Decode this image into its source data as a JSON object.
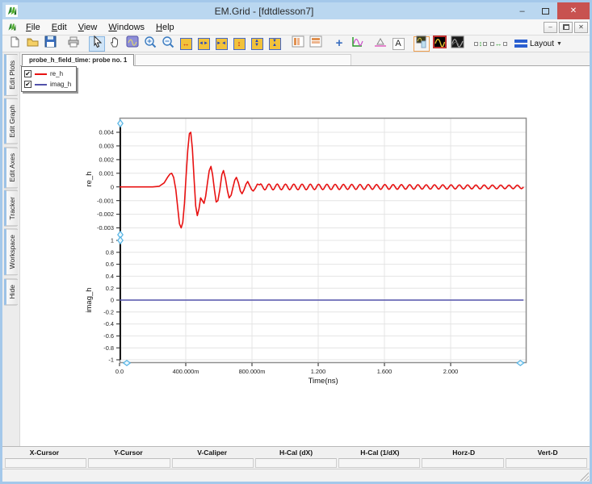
{
  "window": {
    "title": "EM.Grid - [fdtdlesson7]"
  },
  "titlebar": {
    "minimize_glyph": "–",
    "close_glyph": "✕"
  },
  "menu": {
    "items": [
      "File",
      "Edit",
      "View",
      "Windows",
      "Help"
    ]
  },
  "toolbar": {
    "layout_label": "Layout",
    "items": [
      {
        "name": "new-file-button",
        "icon": "page"
      },
      {
        "name": "open-file-button",
        "icon": "folder"
      },
      {
        "name": "save-file-button",
        "icon": "floppy"
      },
      {
        "name": "sep"
      },
      {
        "name": "print-button",
        "icon": "printer"
      },
      {
        "name": "sep"
      },
      {
        "name": "select-tool-button",
        "icon": "cursor",
        "active": true
      },
      {
        "name": "pan-tool-button",
        "icon": "hand"
      },
      {
        "name": "zoom-region-tool-button",
        "icon": "zoomregion"
      },
      {
        "name": "zoom-in-button",
        "icon": "zoomin"
      },
      {
        "name": "zoom-out-button",
        "icon": "zoomout"
      },
      {
        "name": "expand-x-axis-button",
        "icon": "xexpand"
      },
      {
        "name": "stretch-x-axis-button",
        "icon": "xout"
      },
      {
        "name": "compress-x-axis-button",
        "icon": "xin"
      },
      {
        "name": "expand-y-axis-button",
        "icon": "yexpand"
      },
      {
        "name": "stretch-y-axis-button",
        "icon": "yout"
      },
      {
        "name": "compress-y-axis-button",
        "icon": "yin"
      },
      {
        "name": "sep"
      },
      {
        "name": "split-vertical-button",
        "icon": "splitv"
      },
      {
        "name": "split-horizontal-button",
        "icon": "splith"
      },
      {
        "name": "sep"
      },
      {
        "name": "crosshair-tool-button",
        "icon": "cross"
      },
      {
        "name": "tracker-tool-button",
        "icon": "tracker"
      },
      {
        "name": "sep"
      },
      {
        "name": "caliper-tool-button",
        "icon": "caliper"
      },
      {
        "name": "text-tool-button",
        "icon": "textA"
      },
      {
        "name": "sep"
      },
      {
        "name": "plot-region-style-button",
        "icon": "plotstyle",
        "framed": true
      },
      {
        "name": "curve-style-red-button",
        "icon": "curvered"
      },
      {
        "name": "curve-style-dark-button",
        "icon": "curvedark"
      },
      {
        "name": "sep"
      },
      {
        "name": "fit-vertical-button",
        "icon": "fitv"
      },
      {
        "name": "fit-horizontal-button",
        "icon": "fith"
      }
    ]
  },
  "sidebar": {
    "tabs": [
      "Edit Plots",
      "Edit Graph",
      "Edit Axes",
      "Tracker",
      "Workspace",
      "Hide"
    ]
  },
  "doc_tab": {
    "label": "probe_h_field_time: probe no. 1"
  },
  "legend": {
    "items": [
      {
        "label": "re_h",
        "color": "#e81212",
        "checked": true
      },
      {
        "label": "imag_h",
        "color": "#5252aa",
        "checked": true
      }
    ]
  },
  "tracker_bar": {
    "fields": [
      "X-Cursor",
      "Y-Cursor",
      "V-Caliper",
      "H-Cal (dX)",
      "H-Cal (1/dX)",
      "Horz-D",
      "Vert-D"
    ],
    "values": [
      "",
      "",
      "",
      "",
      "",
      "",
      ""
    ]
  },
  "chart_data": {
    "type": "line",
    "xlabel": "Time(ns)",
    "x_range": [
      0,
      2.46
    ],
    "x_ticks": [
      {
        "v": 0,
        "label": "0.0"
      },
      {
        "v": 0.4,
        "label": "400.000m"
      },
      {
        "v": 0.8,
        "label": "800.000m"
      },
      {
        "v": 1.2,
        "label": "1.200"
      },
      {
        "v": 1.6,
        "label": "1.600"
      },
      {
        "v": 2.0,
        "label": "2.000"
      }
    ],
    "grid": true,
    "legend_position": "top-left",
    "subplots": [
      {
        "ylabel": "re_h",
        "ylim": [
          -0.0035,
          0.00465
        ],
        "y_ticks": [
          {
            "v": 0.004,
            "label": "0.004"
          },
          {
            "v": 0.003,
            "label": "0.003"
          },
          {
            "v": 0.002,
            "label": "0.002"
          },
          {
            "v": 0.001,
            "label": "0.001"
          },
          {
            "v": 0,
            "label": "0"
          },
          {
            "v": -0.001,
            "label": "-0.001"
          },
          {
            "v": -0.002,
            "label": "-0.002"
          },
          {
            "v": -0.003,
            "label": "-0.003"
          }
        ],
        "series": [
          {
            "name": "re_h",
            "color": "#e81212",
            "points": [
              [
                0,
                0
              ],
              [
                0.2,
                0
              ],
              [
                0.24,
                5e-05
              ],
              [
                0.27,
                0.0003
              ],
              [
                0.29,
                0.0007
              ],
              [
                0.305,
                0.00095
              ],
              [
                0.315,
                0.001
              ],
              [
                0.327,
                0.0007
              ],
              [
                0.34,
                -0.0002
              ],
              [
                0.352,
                -0.0016
              ],
              [
                0.362,
                -0.0027
              ],
              [
                0.372,
                -0.003
              ],
              [
                0.382,
                -0.0026
              ],
              [
                0.392,
                -0.0012
              ],
              [
                0.402,
                0.0008
              ],
              [
                0.412,
                0.0027
              ],
              [
                0.422,
                0.0039
              ],
              [
                0.43,
                0.004
              ],
              [
                0.44,
                0.0028
              ],
              [
                0.45,
                0.0006
              ],
              [
                0.46,
                -0.0014
              ],
              [
                0.47,
                -0.0021
              ],
              [
                0.48,
                -0.0016
              ],
              [
                0.49,
                -0.0008
              ],
              [
                0.5,
                -0.001
              ],
              [
                0.51,
                -0.0012
              ],
              [
                0.52,
                -0.0007
              ],
              [
                0.532,
                0.0004
              ],
              [
                0.542,
                0.0012
              ],
              [
                0.552,
                0.0015
              ],
              [
                0.562,
                0.0009
              ],
              [
                0.574,
                -0.0003
              ],
              [
                0.584,
                -0.0011
              ],
              [
                0.594,
                -0.001
              ],
              [
                0.606,
                -0.0002
              ],
              [
                0.618,
                0.0009
              ],
              [
                0.628,
                0.0012
              ],
              [
                0.64,
                0.0006
              ],
              [
                0.652,
                -0.0003
              ],
              [
                0.662,
                -0.0008
              ],
              [
                0.674,
                -0.0006
              ],
              [
                0.686,
                0
              ],
              [
                0.696,
                0.0005
              ],
              [
                0.706,
                0.0007
              ],
              [
                0.718,
                0.0003
              ],
              [
                0.73,
                -0.0003
              ],
              [
                0.74,
                -0.0005
              ],
              [
                0.752,
                -0.0002
              ],
              [
                0.764,
                0.0002
              ],
              [
                0.774,
                0.0004
              ],
              [
                0.786,
                0.0001
              ],
              [
                0.798,
                -0.0002
              ],
              [
                0.808,
                -0.0003
              ],
              [
                0.82,
                -0.0001
              ],
              [
                0.832,
                0.0002
              ]
            ],
            "ripple": {
              "from": 0.84,
              "to": 2.44,
              "period": 0.05,
              "amp_start": 0.00022,
              "amp_end": 0.00013
            }
          }
        ]
      },
      {
        "ylabel": "imag_h",
        "ylim": [
          -1,
          1
        ],
        "y_ticks": [
          {
            "v": 1,
            "label": "1"
          },
          {
            "v": 0.8,
            "label": "0.8"
          },
          {
            "v": 0.6,
            "label": "0.6"
          },
          {
            "v": 0.4,
            "label": "0.4"
          },
          {
            "v": 0.2,
            "label": "0.2"
          },
          {
            "v": 0,
            "label": "0"
          },
          {
            "v": -0.2,
            "label": "-0.2"
          },
          {
            "v": -0.4,
            "label": "-0.4"
          },
          {
            "v": -0.6,
            "label": "-0.6"
          },
          {
            "v": -0.8,
            "label": "-0.8"
          },
          {
            "v": -1,
            "label": "-1"
          }
        ],
        "series": [
          {
            "name": "imag_h",
            "color": "#5252aa",
            "points": [
              [
                0,
                0
              ],
              [
                2.44,
                0
              ]
            ]
          }
        ]
      }
    ]
  }
}
